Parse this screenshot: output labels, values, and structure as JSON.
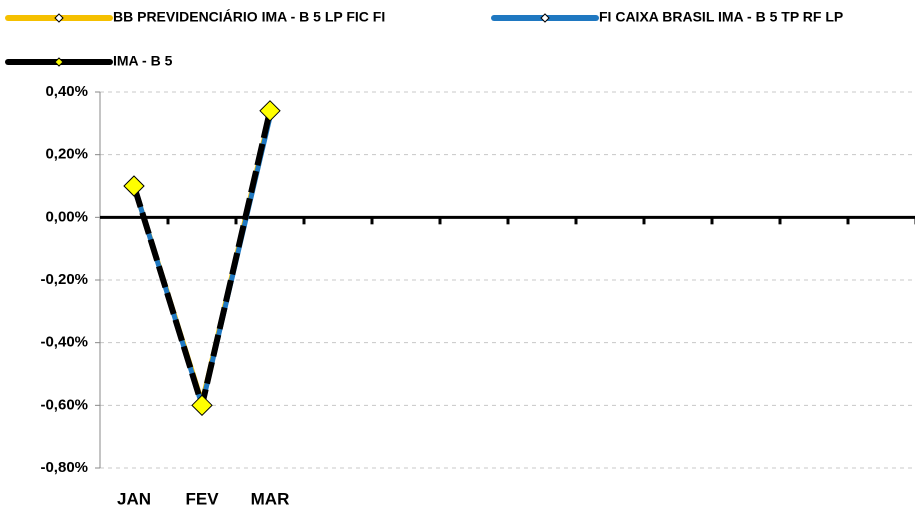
{
  "chart_data": {
    "type": "line",
    "categories": [
      "JAN",
      "FEV",
      "MAR",
      null,
      null,
      null,
      null,
      null,
      null,
      null,
      null,
      null
    ],
    "series": [
      {
        "name": "BB PREVIDENCIÁRIO IMA - B 5 LP FIC FI",
        "color": "#f5c000",
        "values": [
          0.1,
          -0.59,
          0.33,
          null,
          null,
          null,
          null,
          null,
          null,
          null,
          null,
          null
        ]
      },
      {
        "name": "FI CAIXA BRASIL IMA - B 5 TP RF LP",
        "color": "#1f78c1",
        "values": [
          0.1,
          -0.6,
          0.32,
          null,
          null,
          null,
          null,
          null,
          null,
          null,
          null,
          null
        ]
      },
      {
        "name": "IMA - B 5",
        "color": "#000000",
        "marker_color": "#ffff00",
        "dashed": true,
        "values": [
          0.1,
          -0.6,
          0.34,
          null,
          null,
          null,
          null,
          null,
          null,
          null,
          null,
          null
        ]
      }
    ],
    "ylim": [
      -0.8,
      0.4
    ],
    "yticks": [
      {
        "value": 0.4,
        "label": "0,40%"
      },
      {
        "value": 0.2,
        "label": "0,20%"
      },
      {
        "value": 0,
        "label": "0,00%"
      },
      {
        "value": -0.2,
        "label": "-0,20%"
      },
      {
        "value": -0.4,
        "label": "-0,40%"
      },
      {
        "value": -0.6,
        "label": "-0,60%"
      },
      {
        "value": -0.8,
        "label": "-0,80%"
      }
    ],
    "grid": true,
    "legend": "top"
  }
}
